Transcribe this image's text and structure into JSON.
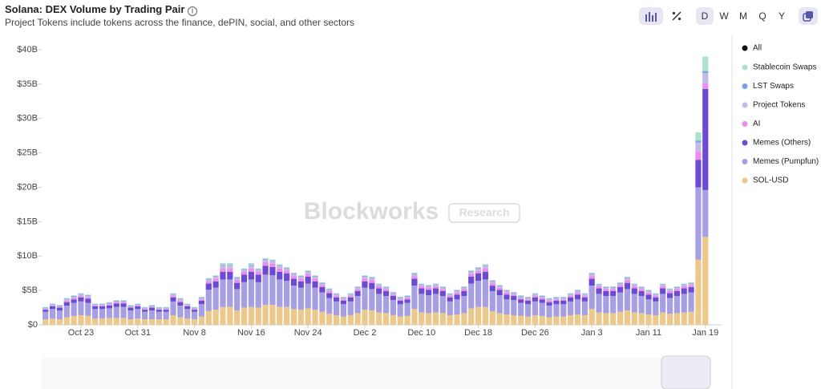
{
  "chart_data": {
    "type": "stacked-bar",
    "title": "Solana: DEX Volume by Trading Pair",
    "subtitle": "Project Tokens include tokens across the finance, dePIN, social, and other sectors",
    "watermark": [
      "Blockworks",
      "Research"
    ],
    "periods": [
      "D",
      "W",
      "M",
      "Q",
      "Y"
    ],
    "legend_all": "All",
    "ylim": [
      0,
      40
    ],
    "yticks": [
      {
        "value": 0,
        "label": "$0"
      },
      {
        "value": 5,
        "label": "$5B"
      },
      {
        "value": 10,
        "label": "$10B"
      },
      {
        "value": 15,
        "label": "$15B"
      },
      {
        "value": 20,
        "label": "$20B"
      },
      {
        "value": 25,
        "label": "$25B"
      },
      {
        "value": 30,
        "label": "$30B"
      },
      {
        "value": 35,
        "label": "$35B"
      },
      {
        "value": 40,
        "label": "$40B"
      }
    ],
    "grid": false,
    "categories": [
      null,
      null,
      null,
      null,
      null,
      "Oct 23",
      null,
      null,
      null,
      null,
      null,
      null,
      null,
      "Oct 31",
      null,
      null,
      null,
      null,
      null,
      null,
      null,
      "Nov 8",
      null,
      null,
      null,
      null,
      null,
      null,
      null,
      "Nov 16",
      null,
      null,
      null,
      null,
      null,
      null,
      null,
      "Nov 24",
      null,
      null,
      null,
      null,
      null,
      null,
      null,
      "Dec 2",
      null,
      null,
      null,
      null,
      null,
      null,
      null,
      "Dec 10",
      null,
      null,
      null,
      null,
      null,
      null,
      null,
      "Dec 18",
      null,
      null,
      null,
      null,
      null,
      null,
      null,
      "Dec 26",
      null,
      null,
      null,
      null,
      null,
      null,
      null,
      "Jan 3",
      null,
      null,
      null,
      null,
      null,
      null,
      null,
      "Jan 11",
      null,
      null,
      null,
      null,
      null,
      null,
      null,
      "Jan 19"
    ],
    "series": [
      {
        "name": "SOL-USD",
        "color": "#ecc98b",
        "values": [
          0.8,
          0.9,
          0.8,
          1.1,
          1.3,
          1.4,
          1.3,
          0.9,
          0.9,
          1.0,
          1.0,
          1.0,
          0.8,
          0.9,
          0.8,
          0.8,
          0.8,
          0.8,
          1.4,
          1.1,
          0.9,
          0.8,
          1.2,
          2.0,
          2.2,
          2.6,
          2.6,
          2.1,
          2.5,
          2.6,
          2.5,
          2.9,
          2.9,
          2.6,
          2.6,
          2.3,
          2.2,
          2.4,
          2.2,
          1.9,
          1.6,
          1.4,
          1.2,
          1.4,
          1.7,
          2.2,
          2.1,
          1.8,
          1.7,
          1.4,
          1.2,
          1.3,
          2.3,
          1.8,
          1.7,
          1.8,
          1.7,
          1.4,
          1.5,
          1.7,
          2.4,
          2.6,
          2.6,
          2.0,
          1.7,
          1.5,
          1.4,
          1.3,
          1.2,
          1.4,
          1.3,
          1.1,
          1.2,
          1.2,
          1.4,
          1.5,
          1.4,
          2.3,
          1.8,
          1.7,
          1.7,
          1.9,
          2.1,
          1.8,
          1.7,
          1.5,
          1.4,
          1.8,
          1.6,
          1.7,
          1.8,
          1.9,
          9.5,
          12.8
        ]
      },
      {
        "name": "Memes (Pumpfun)",
        "color": "#a79fe3",
        "values": [
          1.1,
          1.4,
          1.3,
          1.7,
          1.9,
          2.0,
          1.9,
          1.4,
          1.4,
          1.4,
          1.6,
          1.6,
          1.3,
          1.4,
          1.1,
          1.3,
          1.1,
          1.1,
          2.0,
          1.7,
          1.4,
          1.1,
          1.8,
          3.1,
          3.2,
          4.0,
          4.0,
          3.1,
          3.7,
          4.0,
          3.7,
          4.4,
          4.3,
          4.0,
          3.8,
          3.4,
          3.2,
          3.6,
          3.2,
          2.8,
          2.3,
          2.0,
          1.8,
          2.0,
          2.5,
          3.2,
          3.1,
          2.7,
          2.5,
          2.2,
          1.8,
          1.9,
          3.4,
          2.7,
          2.6,
          2.7,
          2.5,
          2.0,
          2.2,
          2.5,
          3.6,
          3.8,
          4.0,
          2.9,
          2.6,
          2.2,
          2.2,
          1.9,
          1.8,
          2.0,
          1.9,
          1.7,
          1.8,
          1.8,
          2.0,
          2.2,
          2.0,
          3.4,
          2.7,
          2.5,
          2.5,
          2.8,
          3.1,
          2.7,
          2.5,
          2.2,
          2.0,
          2.7,
          2.3,
          2.5,
          2.7,
          2.8,
          10.5,
          6.8
        ]
      },
      {
        "name": "Memes (Others)",
        "color": "#6b4bd3",
        "values": [
          0.3,
          0.4,
          0.4,
          0.5,
          0.5,
          0.6,
          0.6,
          0.4,
          0.4,
          0.4,
          0.5,
          0.5,
          0.4,
          0.4,
          0.3,
          0.4,
          0.3,
          0.3,
          0.6,
          0.5,
          0.4,
          0.3,
          0.5,
          0.9,
          0.9,
          1.1,
          1.1,
          0.9,
          1.1,
          1.1,
          1.1,
          1.3,
          1.2,
          1.1,
          1.1,
          1.0,
          0.9,
          1.0,
          0.9,
          0.8,
          0.7,
          0.6,
          0.5,
          0.6,
          0.7,
          0.9,
          0.9,
          0.8,
          0.7,
          0.6,
          0.5,
          0.5,
          1.0,
          0.8,
          0.8,
          0.8,
          0.7,
          0.6,
          0.7,
          0.7,
          1.0,
          1.1,
          1.1,
          0.8,
          0.8,
          0.7,
          0.6,
          0.5,
          0.5,
          0.6,
          0.5,
          0.5,
          0.5,
          0.5,
          0.6,
          0.7,
          0.6,
          1.0,
          0.8,
          0.7,
          0.7,
          0.8,
          0.9,
          0.8,
          0.7,
          0.7,
          0.6,
          0.8,
          0.7,
          0.7,
          0.8,
          0.8,
          4.0,
          14.7
        ]
      },
      {
        "name": "AI",
        "color": "#ee8bee",
        "values": [
          0.1,
          0.1,
          0.1,
          0.2,
          0.2,
          0.2,
          0.2,
          0.1,
          0.1,
          0.2,
          0.2,
          0.2,
          0.1,
          0.1,
          0.1,
          0.1,
          0.1,
          0.1,
          0.2,
          0.2,
          0.1,
          0.1,
          0.2,
          0.3,
          0.4,
          0.5,
          0.5,
          0.4,
          0.4,
          0.5,
          0.4,
          0.5,
          0.5,
          0.5,
          0.4,
          0.4,
          0.4,
          0.4,
          0.4,
          0.3,
          0.3,
          0.2,
          0.2,
          0.2,
          0.3,
          0.4,
          0.4,
          0.3,
          0.3,
          0.2,
          0.2,
          0.2,
          0.4,
          0.3,
          0.3,
          0.3,
          0.3,
          0.2,
          0.3,
          0.3,
          0.4,
          0.4,
          0.5,
          0.3,
          0.3,
          0.3,
          0.2,
          0.2,
          0.2,
          0.2,
          0.2,
          0.2,
          0.2,
          0.2,
          0.2,
          0.3,
          0.2,
          0.4,
          0.3,
          0.3,
          0.3,
          0.3,
          0.4,
          0.3,
          0.3,
          0.3,
          0.2,
          0.3,
          0.3,
          0.3,
          0.3,
          0.3,
          1.2,
          0.8
        ]
      },
      {
        "name": "Project Tokens",
        "color": "#c3bbe6",
        "values": [
          0.1,
          0.1,
          0.1,
          0.2,
          0.2,
          0.2,
          0.2,
          0.1,
          0.1,
          0.1,
          0.1,
          0.1,
          0.1,
          0.1,
          0.1,
          0.1,
          0.1,
          0.1,
          0.2,
          0.2,
          0.1,
          0.1,
          0.2,
          0.3,
          0.3,
          0.4,
          0.4,
          0.3,
          0.3,
          0.4,
          0.3,
          0.4,
          0.4,
          0.4,
          0.3,
          0.3,
          0.3,
          0.3,
          0.3,
          0.2,
          0.2,
          0.2,
          0.2,
          0.2,
          0.2,
          0.3,
          0.3,
          0.2,
          0.2,
          0.2,
          0.2,
          0.2,
          0.3,
          0.2,
          0.2,
          0.2,
          0.2,
          0.2,
          0.2,
          0.2,
          0.3,
          0.3,
          0.4,
          0.3,
          0.2,
          0.2,
          0.2,
          0.2,
          0.2,
          0.2,
          0.2,
          0.2,
          0.2,
          0.2,
          0.2,
          0.2,
          0.2,
          0.3,
          0.2,
          0.2,
          0.2,
          0.2,
          0.3,
          0.2,
          0.2,
          0.2,
          0.2,
          0.2,
          0.2,
          0.2,
          0.2,
          0.2,
          1.3,
          1.5
        ]
      },
      {
        "name": "LST Swaps",
        "color": "#7ea0e8",
        "values": [
          0.1,
          0.1,
          0.1,
          0.1,
          0.1,
          0.1,
          0.1,
          0.1,
          0.1,
          0.1,
          0.1,
          0.1,
          0.1,
          0.1,
          0.1,
          0.1,
          0.1,
          0.1,
          0.1,
          0.1,
          0.1,
          0.1,
          0.1,
          0.1,
          0.1,
          0.1,
          0.1,
          0.1,
          0.1,
          0.1,
          0.1,
          0.1,
          0.1,
          0.1,
          0.1,
          0.1,
          0.1,
          0.1,
          0.1,
          0.1,
          0.1,
          0.1,
          0.1,
          0.1,
          0.1,
          0.1,
          0.1,
          0.1,
          0.1,
          0.1,
          0.1,
          0.1,
          0.1,
          0.1,
          0.1,
          0.1,
          0.1,
          0.1,
          0.1,
          0.1,
          0.1,
          0.1,
          0.1,
          0.1,
          0.1,
          0.1,
          0.1,
          0.1,
          0.1,
          0.1,
          0.1,
          0.1,
          0.1,
          0.1,
          0.1,
          0.1,
          0.1,
          0.1,
          0.1,
          0.1,
          0.1,
          0.1,
          0.1,
          0.1,
          0.1,
          0.1,
          0.1,
          0.1,
          0.1,
          0.1,
          0.1,
          0.1,
          0.3,
          0.3
        ]
      },
      {
        "name": "Stablecoin Swaps",
        "color": "#ace2cb",
        "values": [
          0.1,
          0.1,
          0.1,
          0.1,
          0.1,
          0.1,
          0.1,
          0.1,
          0.1,
          0.1,
          0.1,
          0.1,
          0.1,
          0.1,
          0.1,
          0.1,
          0.1,
          0.1,
          0.1,
          0.1,
          0.1,
          0.1,
          0.1,
          0.1,
          0.1,
          0.3,
          0.3,
          0.1,
          0.1,
          0.3,
          0.1,
          0.1,
          0.1,
          0.1,
          0.1,
          0.1,
          0.1,
          0.1,
          0.1,
          0.1,
          0.1,
          0.1,
          0.1,
          0.1,
          0.1,
          0.1,
          0.1,
          0.1,
          0.1,
          0.1,
          0.1,
          0.1,
          0.1,
          0.1,
          0.1,
          0.1,
          0.1,
          0.1,
          0.1,
          0.1,
          0.1,
          0.1,
          0.1,
          0.1,
          0.1,
          0.1,
          0.1,
          0.1,
          0.1,
          0.1,
          0.1,
          0.1,
          0.1,
          0.1,
          0.1,
          0.1,
          0.1,
          0.1,
          0.1,
          0.1,
          0.1,
          0.1,
          0.1,
          0.1,
          0.1,
          0.1,
          0.1,
          0.1,
          0.1,
          0.1,
          0.1,
          0.1,
          1.2,
          2.1
        ]
      }
    ]
  }
}
